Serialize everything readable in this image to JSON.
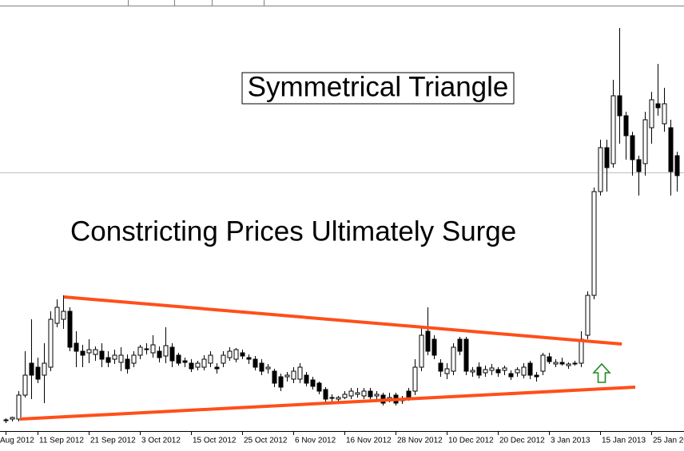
{
  "chart_data": {
    "type": "candlestick",
    "title": "Symmetrical Triangle",
    "subtitle": "Constricting Prices Ultimately Surge",
    "ylim": [
      0,
      532
    ],
    "up_color": "#ffffff",
    "down_color": "#000000",
    "outline_color": "#000000",
    "categories": [
      "Aug 2012",
      null,
      null,
      null,
      null,
      "11 Sep 2012",
      null,
      null,
      null,
      null,
      null,
      null,
      null,
      "21 Sep 2012",
      null,
      null,
      null,
      null,
      null,
      null,
      null,
      "3 Oct 2012",
      null,
      null,
      null,
      null,
      null,
      null,
      null,
      "15 Oct 2012",
      null,
      null,
      null,
      null,
      null,
      null,
      null,
      "25 Oct 2012",
      null,
      null,
      null,
      null,
      null,
      null,
      null,
      "6 Nov 2012",
      null,
      null,
      null,
      null,
      null,
      null,
      null,
      "16 Nov 2012",
      null,
      null,
      null,
      null,
      null,
      null,
      null,
      "28 Nov 2012",
      null,
      null,
      null,
      null,
      null,
      null,
      null,
      "10 Dec 2012",
      null,
      null,
      null,
      null,
      null,
      null,
      null,
      "20 Dec 2012",
      null,
      null,
      null,
      null,
      null,
      null,
      null,
      "3 Jan 2013",
      null,
      null,
      null,
      null,
      null,
      null,
      null,
      "15 Jan 2013",
      null,
      null,
      null,
      null,
      null,
      null,
      null,
      "25 Jan 20",
      null,
      null,
      null,
      null
    ],
    "candles": [
      [
        13,
        16,
        10,
        14
      ],
      [
        15,
        18,
        12,
        17
      ],
      [
        15,
        50,
        12,
        45
      ],
      [
        45,
        100,
        42,
        70
      ],
      [
        85,
        140,
        40,
        70
      ],
      [
        80,
        92,
        60,
        65
      ],
      [
        70,
        110,
        35,
        85
      ],
      [
        80,
        150,
        75,
        140
      ],
      [
        135,
        165,
        130,
        155
      ],
      [
        140,
        170,
        128,
        150
      ],
      [
        150,
        155,
        100,
        105
      ],
      [
        110,
        125,
        80,
        100
      ],
      [
        100,
        108,
        80,
        95
      ],
      [
        98,
        115,
        85,
        102
      ],
      [
        96,
        106,
        88,
        102
      ],
      [
        100,
        110,
        80,
        90
      ],
      [
        92,
        100,
        80,
        86
      ],
      [
        90,
        102,
        84,
        95
      ],
      [
        86,
        105,
        75,
        95
      ],
      [
        90,
        96,
        72,
        78
      ],
      [
        85,
        100,
        80,
        95
      ],
      [
        95,
        108,
        90,
        105
      ],
      [
        102,
        110,
        96,
        103
      ],
      [
        98,
        120,
        92,
        108
      ],
      [
        100,
        106,
        86,
        92
      ],
      [
        94,
        130,
        85,
        107
      ],
      [
        105,
        110,
        80,
        88
      ],
      [
        95,
        98,
        82,
        85
      ],
      [
        88,
        92,
        80,
        86
      ],
      [
        85,
        90,
        74,
        78
      ],
      [
        80,
        88,
        76,
        85
      ],
      [
        80,
        95,
        76,
        90
      ],
      [
        85,
        100,
        80,
        95
      ],
      [
        80,
        85,
        72,
        78
      ],
      [
        85,
        100,
        80,
        95
      ],
      [
        92,
        105,
        88,
        100
      ],
      [
        90,
        104,
        86,
        102
      ],
      [
        98,
        102,
        90,
        94
      ],
      [
        92,
        96,
        84,
        90
      ],
      [
        90,
        94,
        76,
        80
      ],
      [
        85,
        90,
        70,
        75
      ],
      [
        78,
        84,
        72,
        80
      ],
      [
        75,
        78,
        55,
        60
      ],
      [
        68,
        72,
        50,
        55
      ],
      [
        68,
        74,
        62,
        70
      ],
      [
        65,
        80,
        60,
        75
      ],
      [
        65,
        85,
        60,
        80
      ],
      [
        70,
        74,
        56,
        60
      ],
      [
        64,
        68,
        52,
        56
      ],
      [
        60,
        62,
        46,
        50
      ],
      [
        52,
        55,
        36,
        40
      ],
      [
        42,
        46,
        36,
        42
      ],
      [
        40,
        44,
        36,
        42
      ],
      [
        42,
        50,
        40,
        46
      ],
      [
        44,
        54,
        40,
        50
      ],
      [
        46,
        54,
        42,
        48
      ],
      [
        44,
        54,
        40,
        50
      ],
      [
        50,
        54,
        40,
        43
      ],
      [
        44,
        50,
        40,
        46
      ],
      [
        45,
        48,
        32,
        35
      ],
      [
        40,
        48,
        36,
        42
      ],
      [
        45,
        48,
        32,
        35
      ],
      [
        38,
        44,
        34,
        40
      ],
      [
        50,
        54,
        38,
        40
      ],
      [
        50,
        90,
        45,
        80
      ],
      [
        80,
        130,
        75,
        120
      ],
      [
        125,
        155,
        95,
        100
      ],
      [
        115,
        120,
        90,
        95
      ],
      [
        85,
        90,
        68,
        75
      ],
      [
        72,
        85,
        65,
        78
      ],
      [
        75,
        110,
        70,
        105
      ],
      [
        115,
        118,
        95,
        100
      ],
      [
        115,
        118,
        70,
        75
      ],
      [
        74,
        80,
        68,
        76
      ],
      [
        80,
        86,
        66,
        70
      ],
      [
        73,
        82,
        68,
        77
      ],
      [
        76,
        84,
        70,
        79
      ],
      [
        77,
        80,
        68,
        73
      ],
      [
        76,
        82,
        70,
        79
      ],
      [
        72,
        76,
        64,
        68
      ],
      [
        73,
        80,
        68,
        77
      ],
      [
        70,
        85,
        66,
        80
      ],
      [
        85,
        88,
        65,
        70
      ],
      [
        70,
        74,
        62,
        68
      ],
      [
        75,
        98,
        70,
        95
      ],
      [
        93,
        98,
        84,
        87
      ],
      [
        84,
        90,
        80,
        86
      ],
      [
        86,
        92,
        82,
        84
      ],
      [
        82,
        86,
        78,
        84
      ],
      [
        84,
        88,
        82,
        85
      ],
      [
        85,
        125,
        80,
        115
      ],
      [
        120,
        175,
        115,
        170
      ],
      [
        170,
        305,
        165,
        300
      ],
      [
        300,
        365,
        295,
        355
      ],
      [
        355,
        365,
        300,
        330
      ],
      [
        335,
        440,
        330,
        420
      ],
      [
        420,
        505,
        360,
        395
      ],
      [
        395,
        400,
        340,
        370
      ],
      [
        370,
        375,
        320,
        340
      ],
      [
        340,
        345,
        295,
        325
      ],
      [
        335,
        400,
        320,
        390
      ],
      [
        380,
        425,
        360,
        415
      ],
      [
        410,
        460,
        395,
        405
      ],
      [
        385,
        430,
        375,
        410
      ],
      [
        380,
        390,
        295,
        325
      ],
      [
        345,
        350,
        300,
        320
      ]
    ],
    "level_line": 324,
    "level_color": "#c0c0c0",
    "trendlines": [
      {
        "color": "#ff4f1a",
        "from": [
          9.1,
          168
        ],
        "to": [
          96.4,
          109
        ]
      },
      {
        "color": "#ff4f1a",
        "from": [
          2.25,
          15
        ],
        "to": [
          98.5,
          55
        ]
      }
    ]
  }
}
